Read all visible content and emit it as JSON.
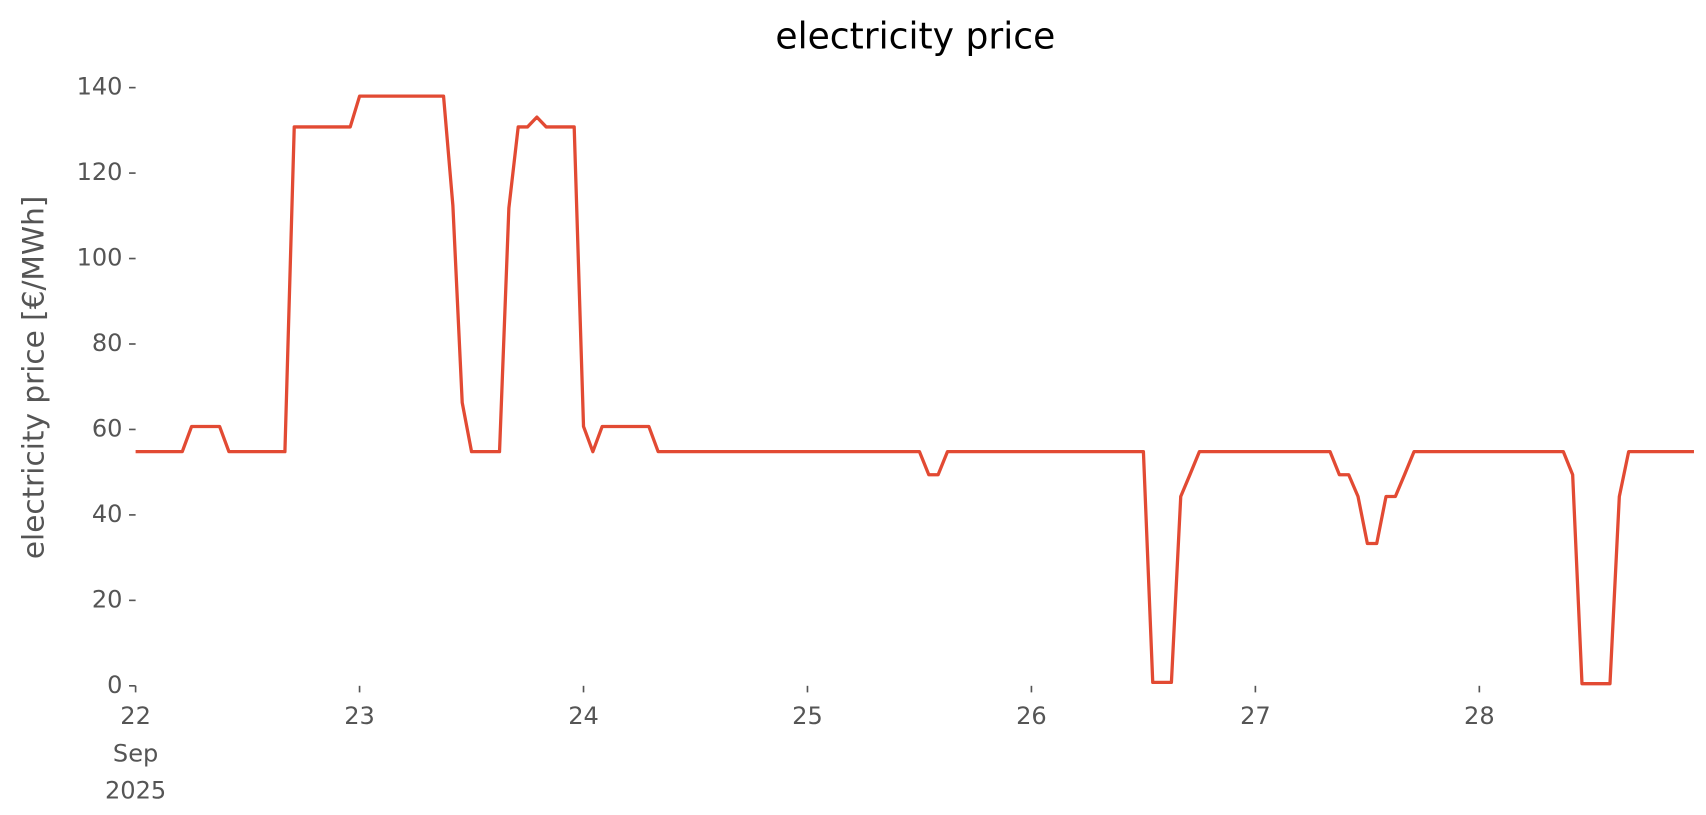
{
  "chart_data": {
    "type": "line",
    "title": "electricity price",
    "ylabel": "electricity price [€/MWh]",
    "color": "#e24a33",
    "x": [
      "2025-09-22 00:00",
      "2025-09-22 01:00",
      "2025-09-22 02:00",
      "2025-09-22 03:00",
      "2025-09-22 04:00",
      "2025-09-22 05:00",
      "2025-09-22 06:00",
      "2025-09-22 07:00",
      "2025-09-22 08:00",
      "2025-09-22 09:00",
      "2025-09-22 10:00",
      "2025-09-22 11:00",
      "2025-09-22 12:00",
      "2025-09-22 13:00",
      "2025-09-22 14:00",
      "2025-09-22 15:00",
      "2025-09-22 16:00",
      "2025-09-22 17:00",
      "2025-09-22 18:00",
      "2025-09-22 19:00",
      "2025-09-22 20:00",
      "2025-09-22 21:00",
      "2025-09-22 22:00",
      "2025-09-22 23:00",
      "2025-09-23 00:00",
      "2025-09-23 01:00",
      "2025-09-23 02:00",
      "2025-09-23 03:00",
      "2025-09-23 04:00",
      "2025-09-23 05:00",
      "2025-09-23 06:00",
      "2025-09-23 07:00",
      "2025-09-23 08:00",
      "2025-09-23 09:00",
      "2025-09-23 10:00",
      "2025-09-23 11:00",
      "2025-09-23 12:00",
      "2025-09-23 13:00",
      "2025-09-23 14:00",
      "2025-09-23 15:00",
      "2025-09-23 16:00",
      "2025-09-23 17:00",
      "2025-09-23 18:00",
      "2025-09-23 19:00",
      "2025-09-23 20:00",
      "2025-09-23 21:00",
      "2025-09-23 22:00",
      "2025-09-23 23:00",
      "2025-09-24 00:00",
      "2025-09-24 01:00",
      "2025-09-24 02:00",
      "2025-09-24 03:00",
      "2025-09-24 04:00",
      "2025-09-24 05:00",
      "2025-09-24 06:00",
      "2025-09-24 07:00",
      "2025-09-24 08:00",
      "2025-09-24 09:00",
      "2025-09-24 10:00",
      "2025-09-24 11:00",
      "2025-09-24 12:00",
      "2025-09-24 13:00",
      "2025-09-24 14:00",
      "2025-09-24 15:00",
      "2025-09-24 16:00",
      "2025-09-24 17:00",
      "2025-09-24 18:00",
      "2025-09-24 19:00",
      "2025-09-24 20:00",
      "2025-09-24 21:00",
      "2025-09-24 22:00",
      "2025-09-24 23:00",
      "2025-09-25 00:00",
      "2025-09-25 01:00",
      "2025-09-25 02:00",
      "2025-09-25 03:00",
      "2025-09-25 04:00",
      "2025-09-25 05:00",
      "2025-09-25 06:00",
      "2025-09-25 07:00",
      "2025-09-25 08:00",
      "2025-09-25 09:00",
      "2025-09-25 10:00",
      "2025-09-25 11:00",
      "2025-09-25 12:00",
      "2025-09-25 13:00",
      "2025-09-25 14:00",
      "2025-09-25 15:00",
      "2025-09-25 16:00",
      "2025-09-25 17:00",
      "2025-09-25 18:00",
      "2025-09-25 19:00",
      "2025-09-25 20:00",
      "2025-09-25 21:00",
      "2025-09-25 22:00",
      "2025-09-25 23:00",
      "2025-09-26 00:00",
      "2025-09-26 01:00",
      "2025-09-26 02:00",
      "2025-09-26 03:00",
      "2025-09-26 04:00",
      "2025-09-26 05:00",
      "2025-09-26 06:00",
      "2025-09-26 07:00",
      "2025-09-26 08:00",
      "2025-09-26 09:00",
      "2025-09-26 10:00",
      "2025-09-26 11:00",
      "2025-09-26 12:00",
      "2025-09-26 13:00",
      "2025-09-26 14:00",
      "2025-09-26 15:00",
      "2025-09-26 16:00",
      "2025-09-26 17:00",
      "2025-09-26 18:00",
      "2025-09-26 19:00",
      "2025-09-26 20:00",
      "2025-09-26 21:00",
      "2025-09-26 22:00",
      "2025-09-26 23:00",
      "2025-09-27 00:00",
      "2025-09-27 01:00",
      "2025-09-27 02:00",
      "2025-09-27 03:00",
      "2025-09-27 04:00",
      "2025-09-27 05:00",
      "2025-09-27 06:00",
      "2025-09-27 07:00",
      "2025-09-27 08:00",
      "2025-09-27 09:00",
      "2025-09-27 10:00",
      "2025-09-27 11:00",
      "2025-09-27 12:00",
      "2025-09-27 13:00",
      "2025-09-27 14:00",
      "2025-09-27 15:00",
      "2025-09-27 16:00",
      "2025-09-27 17:00",
      "2025-09-27 18:00",
      "2025-09-27 19:00",
      "2025-09-27 20:00",
      "2025-09-27 21:00",
      "2025-09-27 22:00",
      "2025-09-27 23:00",
      "2025-09-28 00:00",
      "2025-09-28 01:00",
      "2025-09-28 02:00",
      "2025-09-28 03:00",
      "2025-09-28 04:00",
      "2025-09-28 05:00",
      "2025-09-28 06:00",
      "2025-09-28 07:00",
      "2025-09-28 08:00",
      "2025-09-28 09:00",
      "2025-09-28 10:00",
      "2025-09-28 11:00",
      "2025-09-28 12:00",
      "2025-09-28 13:00",
      "2025-09-28 14:00",
      "2025-09-28 15:00",
      "2025-09-28 16:00",
      "2025-09-28 17:00",
      "2025-09-28 18:00",
      "2025-09-28 19:00",
      "2025-09-28 20:00",
      "2025-09-28 21:00",
      "2025-09-28 22:00",
      "2025-09-28 23:00"
    ],
    "values": [
      54.8,
      54.8,
      54.8,
      54.8,
      54.8,
      54.8,
      60.7,
      60.7,
      60.7,
      60.7,
      54.8,
      54.8,
      54.8,
      54.8,
      54.8,
      54.8,
      54.8,
      130.8,
      130.8,
      130.8,
      130.8,
      130.8,
      130.8,
      130.8,
      138,
      138,
      138,
      138,
      138,
      138,
      138,
      138,
      138,
      138,
      112.4,
      66.3,
      54.8,
      54.8,
      54.8,
      54.8,
      111.8,
      130.8,
      130.8,
      133.1,
      130.8,
      130.8,
      130.8,
      130.8,
      60.7,
      54.8,
      60.7,
      60.7,
      60.7,
      60.7,
      60.7,
      60.7,
      54.8,
      54.8,
      54.8,
      54.8,
      54.8,
      54.8,
      54.8,
      54.8,
      54.8,
      54.8,
      54.8,
      54.8,
      54.8,
      54.8,
      54.8,
      54.8,
      54.8,
      54.8,
      54.8,
      54.8,
      54.8,
      54.8,
      54.8,
      54.8,
      54.8,
      54.8,
      54.8,
      54.8,
      54.8,
      49.4,
      49.4,
      54.8,
      54.8,
      54.8,
      54.8,
      54.8,
      54.8,
      54.8,
      54.8,
      54.8,
      54.8,
      54.8,
      54.8,
      54.8,
      54.8,
      54.8,
      54.8,
      54.8,
      54.8,
      54.8,
      54.8,
      54.8,
      54.8,
      0.8,
      0.8,
      0.8,
      44.3,
      49.5,
      54.8,
      54.8,
      54.8,
      54.8,
      54.8,
      54.8,
      54.8,
      54.8,
      54.8,
      54.8,
      54.8,
      54.8,
      54.8,
      54.8,
      54.8,
      49.4,
      49.4,
      44.3,
      33.3,
      33.3,
      44.3,
      44.3,
      49.5,
      54.8,
      54.8,
      54.8,
      54.8,
      54.8,
      54.8,
      54.8,
      54.8,
      54.8,
      54.8,
      54.8,
      54.8,
      54.8,
      54.8,
      54.8,
      54.8,
      54.8,
      49.4,
      0.5,
      0.5,
      0.5,
      0.5,
      44.3,
      54.8,
      54.8,
      54.8,
      54.8,
      54.8,
      54.8,
      54.8,
      54.8
    ],
    "xlim": [
      "2025-09-22 00:00",
      "2025-09-28 23:00"
    ],
    "xticks": [
      {
        "value": "2025-09-22",
        "label": "22\nSep\n2025"
      },
      {
        "value": "2025-09-23",
        "label": "23"
      },
      {
        "value": "2025-09-24",
        "label": "24"
      },
      {
        "value": "2025-09-25",
        "label": "25"
      },
      {
        "value": "2025-09-26",
        "label": "26"
      },
      {
        "value": "2025-09-27",
        "label": "27"
      },
      {
        "value": "2025-09-28",
        "label": "28"
      }
    ],
    "ylim": [
      0,
      140
    ],
    "yticks": [
      0,
      20,
      40,
      60,
      80,
      100,
      120,
      140
    ],
    "grid": false
  }
}
